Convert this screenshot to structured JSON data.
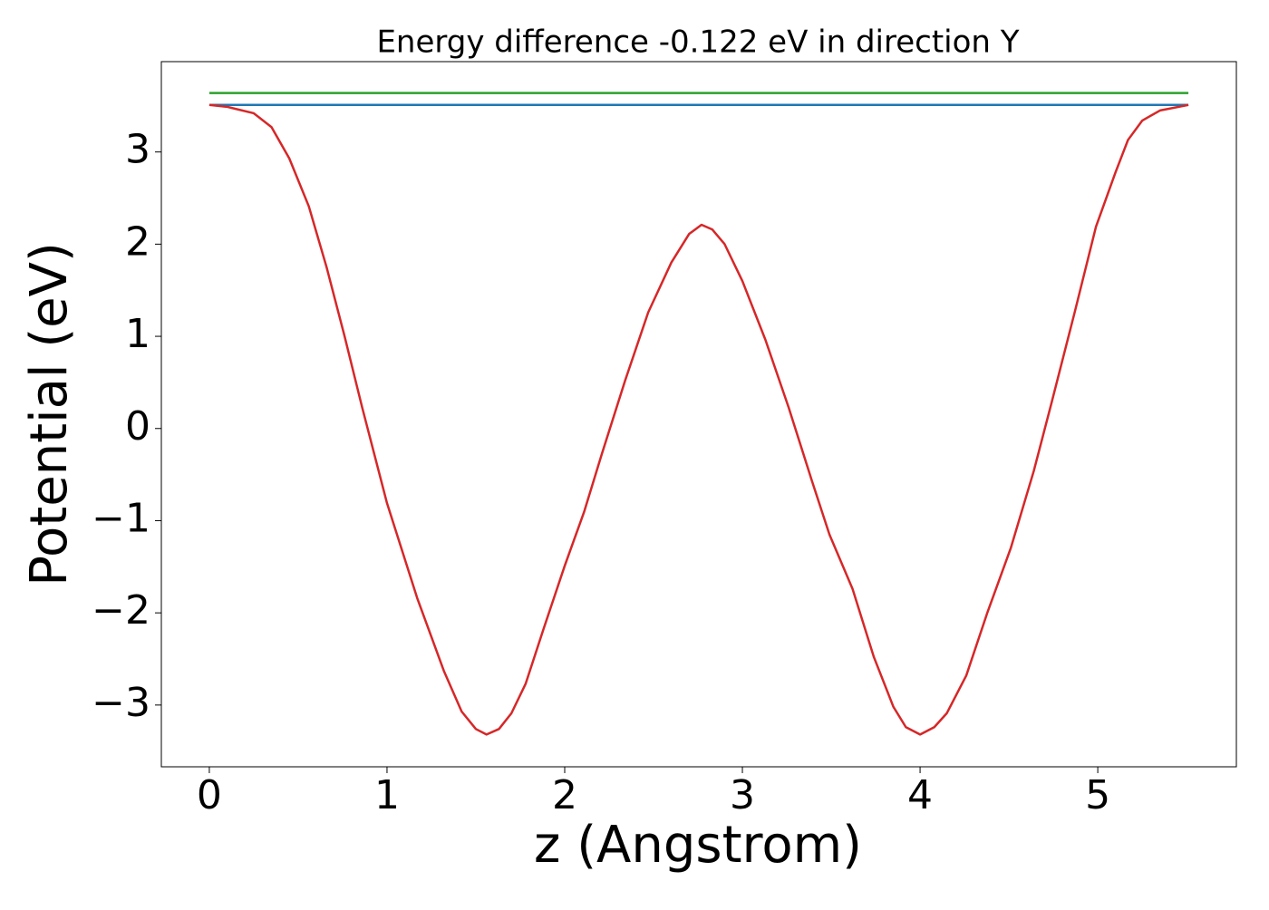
{
  "chart_data": {
    "type": "line",
    "title": "Energy difference -0.122 eV in direction Y",
    "xlabel": "z (Angstrom)",
    "ylabel": "Potential (eV)",
    "xlim": [
      -0.27,
      5.78
    ],
    "ylim": [
      -3.67,
      3.98
    ],
    "xticks": [
      0,
      1,
      2,
      3,
      4,
      5
    ],
    "yticks": [
      {
        "value": -3,
        "label": "−3"
      },
      {
        "value": -2,
        "label": "−2"
      },
      {
        "value": -1,
        "label": "−1"
      },
      0,
      1,
      2,
      3
    ],
    "grid": false,
    "series": [
      {
        "color": "#2ca02c",
        "x": [
          0,
          5.51
        ],
        "values": [
          3.64,
          3.64
        ]
      },
      {
        "color": "#1f77b4",
        "x": [
          0,
          5.51
        ],
        "values": [
          3.51,
          3.51
        ]
      },
      {
        "color": "#d62728",
        "x": [
          0,
          0.1,
          0.25,
          0.35,
          0.45,
          0.56,
          0.66,
          0.76,
          0.86,
          1.0,
          1.17,
          1.32,
          1.42,
          1.5,
          1.56,
          1.63,
          1.7,
          1.78,
          1.88,
          2.0,
          2.11,
          2.21,
          2.34,
          2.47,
          2.6,
          2.7,
          2.77,
          2.83,
          2.9,
          3.0,
          3.13,
          3.26,
          3.39,
          3.49,
          3.62,
          3.74,
          3.85,
          3.92,
          4.0,
          4.08,
          4.15,
          4.26,
          4.38,
          4.51,
          4.64,
          4.74,
          4.87,
          4.99,
          5.1,
          5.17,
          5.25,
          5.35,
          5.51
        ],
        "values": [
          3.51,
          3.49,
          3.42,
          3.27,
          2.93,
          2.41,
          1.75,
          1.01,
          0.23,
          -0.81,
          -1.84,
          -2.63,
          -3.07,
          -3.26,
          -3.32,
          -3.26,
          -3.09,
          -2.77,
          -2.18,
          -1.49,
          -0.9,
          -0.27,
          0.52,
          1.26,
          1.8,
          2.11,
          2.21,
          2.16,
          2.0,
          1.6,
          0.96,
          0.23,
          -0.56,
          -1.15,
          -1.74,
          -2.48,
          -3.02,
          -3.24,
          -3.32,
          -3.24,
          -3.09,
          -2.68,
          -1.99,
          -1.3,
          -0.46,
          0.28,
          1.26,
          2.19,
          2.78,
          3.13,
          3.34,
          3.45,
          3.51
        ]
      }
    ]
  }
}
